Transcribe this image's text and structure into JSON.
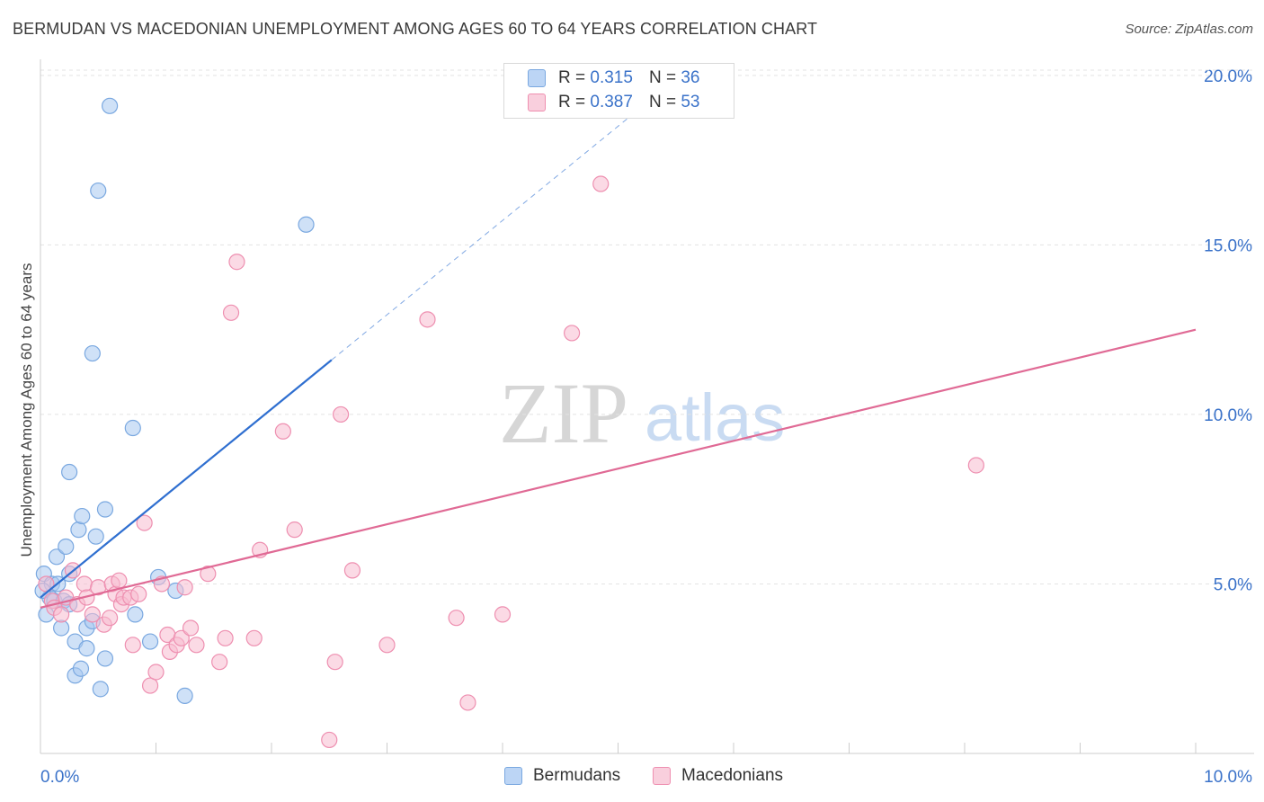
{
  "title": "BERMUDAN VS MACEDONIAN UNEMPLOYMENT AMONG AGES 60 TO 64 YEARS CORRELATION CHART",
  "source": "Source: ZipAtlas.com",
  "watermark": {
    "zip": "ZIP",
    "atlas": "atlas"
  },
  "legend_top": [
    {
      "r_label": "R =",
      "r_value": "0.315",
      "n_label": "N =",
      "n_value": "36"
    },
    {
      "r_label": "R =",
      "r_value": "0.387",
      "n_label": "N =",
      "n_value": "53"
    }
  ],
  "legend_bottom": [
    "Bermudans",
    "Macedonians"
  ],
  "colors": {
    "blue_fill": "#a8c8f0",
    "blue_stroke": "#7aa8e0",
    "blue_line": "#2f6fd0",
    "pink_fill": "#f7bcd0",
    "pink_stroke": "#ee8fb0",
    "pink_line": "#e06a95",
    "tick_text": "#3a72c9",
    "grid": "#e3e3e3"
  },
  "chart_data": {
    "type": "scatter",
    "title": "BERMUDAN VS MACEDONIAN UNEMPLOYMENT AMONG AGES 60 TO 64 YEARS CORRELATION CHART",
    "xlabel": "",
    "ylabel": "Unemployment Among Ages 60 to 64 years",
    "xlim": [
      0,
      10
    ],
    "ylim": [
      0,
      20.5
    ],
    "x_tick_labels": [
      "0.0%",
      "10.0%"
    ],
    "y_ticks": [
      5,
      10,
      15,
      20
    ],
    "y_tick_labels": [
      "5.0%",
      "10.0%",
      "15.0%",
      "20.0%"
    ],
    "grid": true,
    "series": [
      {
        "name": "Bermudans",
        "r": 0.315,
        "n": 36,
        "trend": {
          "x0": 0,
          "y0": 4.6,
          "x_solid_end": 2.52,
          "x_end": 5.3,
          "slope": 2.78
        },
        "points": [
          [
            0.03,
            5.3
          ],
          [
            0.05,
            4.1
          ],
          [
            0.08,
            4.6
          ],
          [
            0.1,
            5.0
          ],
          [
            0.12,
            4.5
          ],
          [
            0.14,
            5.8
          ],
          [
            0.18,
            3.7
          ],
          [
            0.2,
            4.5
          ],
          [
            0.22,
            6.1
          ],
          [
            0.25,
            5.3
          ],
          [
            0.25,
            4.4
          ],
          [
            0.25,
            8.3
          ],
          [
            0.3,
            3.3
          ],
          [
            0.3,
            2.3
          ],
          [
            0.33,
            6.6
          ],
          [
            0.35,
            2.5
          ],
          [
            0.36,
            7.0
          ],
          [
            0.4,
            3.7
          ],
          [
            0.4,
            3.1
          ],
          [
            0.45,
            3.9
          ],
          [
            0.45,
            11.8
          ],
          [
            0.48,
            6.4
          ],
          [
            0.5,
            16.6
          ],
          [
            0.52,
            1.9
          ],
          [
            0.56,
            2.8
          ],
          [
            0.56,
            7.2
          ],
          [
            0.6,
            19.1
          ],
          [
            0.8,
            9.6
          ],
          [
            0.82,
            4.1
          ],
          [
            0.95,
            3.3
          ],
          [
            1.02,
            5.2
          ],
          [
            1.17,
            4.8
          ],
          [
            1.25,
            1.7
          ],
          [
            2.3,
            15.6
          ],
          [
            0.02,
            4.8
          ],
          [
            0.15,
            5.0
          ]
        ]
      },
      {
        "name": "Macedonians",
        "r": 0.387,
        "n": 53,
        "trend": {
          "x0": 0,
          "y0": 4.3,
          "x_end": 10.0,
          "y_end": 12.5
        },
        "points": [
          [
            0.05,
            5.0
          ],
          [
            0.1,
            4.5
          ],
          [
            0.12,
            4.3
          ],
          [
            0.18,
            4.1
          ],
          [
            0.22,
            4.6
          ],
          [
            0.28,
            5.4
          ],
          [
            0.32,
            4.4
          ],
          [
            0.38,
            5.0
          ],
          [
            0.4,
            4.6
          ],
          [
            0.45,
            4.1
          ],
          [
            0.5,
            4.9
          ],
          [
            0.55,
            3.8
          ],
          [
            0.6,
            4.0
          ],
          [
            0.62,
            5.0
          ],
          [
            0.65,
            4.7
          ],
          [
            0.68,
            5.1
          ],
          [
            0.7,
            4.4
          ],
          [
            0.72,
            4.6
          ],
          [
            0.78,
            4.6
          ],
          [
            0.8,
            3.2
          ],
          [
            0.85,
            4.7
          ],
          [
            0.9,
            6.8
          ],
          [
            0.95,
            2.0
          ],
          [
            1.0,
            2.4
          ],
          [
            1.05,
            5.0
          ],
          [
            1.1,
            3.5
          ],
          [
            1.12,
            3.0
          ],
          [
            1.18,
            3.2
          ],
          [
            1.22,
            3.4
          ],
          [
            1.25,
            4.9
          ],
          [
            1.3,
            3.7
          ],
          [
            1.35,
            3.2
          ],
          [
            1.45,
            5.3
          ],
          [
            1.55,
            2.7
          ],
          [
            1.6,
            3.4
          ],
          [
            1.65,
            13.0
          ],
          [
            1.7,
            14.5
          ],
          [
            1.85,
            3.4
          ],
          [
            1.9,
            6.0
          ],
          [
            2.1,
            9.5
          ],
          [
            2.2,
            6.6
          ],
          [
            2.5,
            0.4
          ],
          [
            2.55,
            2.7
          ],
          [
            2.6,
            10.0
          ],
          [
            2.7,
            5.4
          ],
          [
            3.0,
            3.2
          ],
          [
            3.35,
            12.8
          ],
          [
            3.6,
            4.0
          ],
          [
            3.7,
            1.5
          ],
          [
            4.0,
            4.1
          ],
          [
            4.6,
            12.4
          ],
          [
            4.85,
            16.8
          ],
          [
            8.1,
            8.5
          ]
        ]
      }
    ]
  }
}
